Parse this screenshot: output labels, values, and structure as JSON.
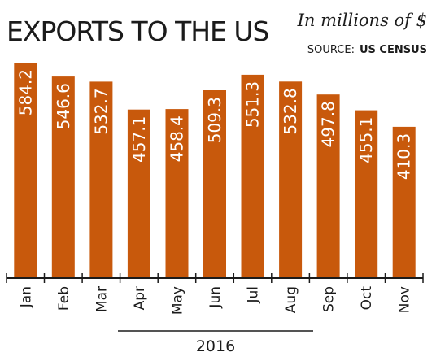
{
  "title": "EXPORTS TO THE US",
  "unit": "In millions of $",
  "source_label": "SOURCE:",
  "source_value": "US CENSUS",
  "year": "2016",
  "colors": {
    "bar": "#c8590c",
    "text": "#1b1b1b",
    "axis": "#1b1b1b",
    "background": "#ffffff"
  },
  "chart_data": {
    "type": "bar",
    "categories": [
      "Jan",
      "Feb",
      "Mar",
      "Apr",
      "May",
      "Jun",
      "Jul",
      "Aug",
      "Sep",
      "Oct",
      "Nov"
    ],
    "values": [
      584.2,
      546.6,
      532.7,
      457.1,
      458.4,
      509.3,
      551.3,
      532.8,
      497.8,
      455.1,
      410.3
    ],
    "value_labels": [
      "584.2",
      "546.6",
      "532.7",
      "457.1",
      "458.4",
      "509.3",
      "551.3",
      "532.8",
      "497.8",
      "455.1",
      "410.3"
    ],
    "title": "EXPORTS TO THE US",
    "xlabel": "2016",
    "ylabel": "",
    "grid": false,
    "legend": "none"
  }
}
